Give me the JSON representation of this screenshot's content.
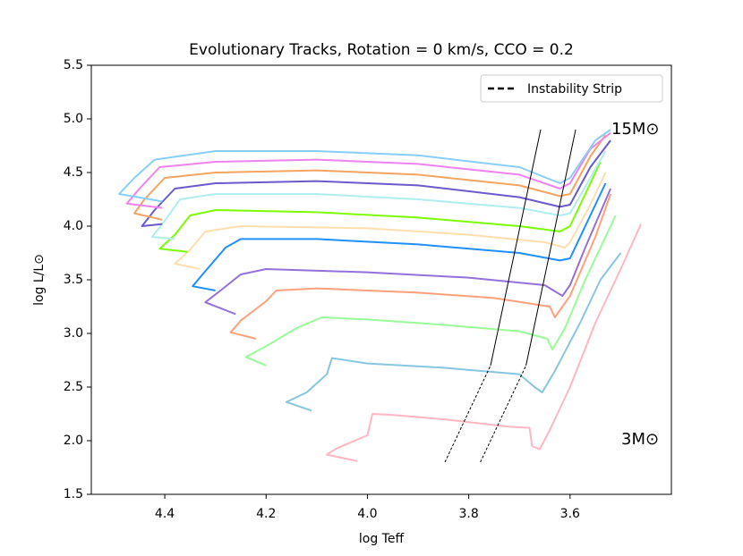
{
  "chart_data": {
    "type": "line",
    "title": "Evolutionary Tracks, Rotation = 0 km/s, CCO = 0.2",
    "x_label": "log Teff",
    "y_label": "log L/L⊙",
    "xlim": [
      4.545,
      3.4
    ],
    "ylim": [
      1.5,
      5.5
    ],
    "xticks": [
      4.4,
      4.2,
      {
        "value": 4,
        "label": "4.0"
      },
      3.8,
      3.6
    ],
    "yticks": [
      1.5,
      {
        "value": 2,
        "label": "2.0"
      },
      2.5,
      {
        "value": 3,
        "label": "3.0"
      },
      3.5,
      {
        "value": 4,
        "label": "4.0"
      },
      4.5,
      {
        "value": 5,
        "label": "5.0"
      },
      5.5
    ],
    "grid": false,
    "legend": "upper right",
    "annotations": [
      "15M⊙",
      "3M⊙"
    ],
    "instability_strip": {
      "name": "Instability Strip",
      "color": "#000000",
      "lines": [
        {
          "style": "dashed",
          "x": [
            3.847,
            3.757
          ],
          "values": [
            1.8,
            2.7
          ]
        },
        {
          "style": "solid",
          "x": [
            3.757,
            3.658
          ],
          "values": [
            2.7,
            4.9
          ]
        },
        {
          "style": "dashed",
          "x": [
            3.777,
            3.687
          ],
          "values": [
            1.8,
            2.7
          ]
        },
        {
          "style": "solid",
          "x": [
            3.687,
            3.589
          ],
          "values": [
            2.7,
            4.9
          ]
        }
      ]
    },
    "series": [
      {
        "color": "#ffb6c1",
        "x": [
          4.02,
          4.08,
          4.06,
          4.0,
          3.99,
          3.95,
          3.85,
          3.72,
          3.68,
          3.675,
          3.66,
          3.64,
          3.6,
          3.55,
          3.5,
          3.46
        ],
        "values": [
          1.81,
          1.87,
          1.93,
          2.05,
          2.25,
          2.24,
          2.2,
          2.13,
          2.12,
          1.95,
          1.92,
          2.1,
          2.5,
          3.1,
          3.6,
          4.02
        ]
      },
      {
        "color": "#87c6e0",
        "x": [
          4.11,
          4.16,
          4.12,
          4.08,
          4.07,
          4.0,
          3.85,
          3.7,
          3.67,
          3.655,
          3.63,
          3.58,
          3.54,
          3.5
        ],
        "values": [
          2.28,
          2.36,
          2.45,
          2.62,
          2.77,
          2.72,
          2.68,
          2.62,
          2.5,
          2.45,
          2.65,
          3.1,
          3.5,
          3.75
        ]
      },
      {
        "color": "#98fb98",
        "x": [
          4.2,
          4.24,
          4.2,
          4.14,
          4.09,
          4.0,
          3.85,
          3.7,
          3.645,
          3.635,
          3.61,
          3.57,
          3.51
        ],
        "values": [
          2.7,
          2.78,
          2.88,
          3.05,
          3.15,
          3.13,
          3.08,
          3.02,
          2.95,
          2.85,
          3.05,
          3.5,
          4.1
        ]
      },
      {
        "color": "#ffa07a",
        "x": [
          4.22,
          4.27,
          4.25,
          4.2,
          4.18,
          4.1,
          3.9,
          3.75,
          3.64,
          3.63,
          3.6,
          3.55,
          3.52
        ],
        "values": [
          2.95,
          3.01,
          3.12,
          3.3,
          3.4,
          3.42,
          3.38,
          3.33,
          3.25,
          3.15,
          3.35,
          3.9,
          4.3
        ]
      },
      {
        "color": "#9370db",
        "x": [
          4.26,
          4.32,
          4.29,
          4.25,
          4.2,
          4.0,
          3.8,
          3.65,
          3.615,
          3.6,
          3.57,
          3.52
        ],
        "values": [
          3.18,
          3.29,
          3.4,
          3.55,
          3.6,
          3.57,
          3.52,
          3.45,
          3.35,
          3.45,
          3.8,
          4.35
        ]
      },
      {
        "color": "#1e90ff",
        "x": [
          4.3,
          4.345,
          4.32,
          4.28,
          4.25,
          4.1,
          3.9,
          3.7,
          3.62,
          3.6,
          3.57,
          3.53
        ],
        "values": [
          3.4,
          3.44,
          3.58,
          3.8,
          3.88,
          3.88,
          3.83,
          3.75,
          3.68,
          3.7,
          4.0,
          4.4
        ]
      },
      {
        "color": "#ffdead",
        "x": [
          4.33,
          4.38,
          4.35,
          4.32,
          4.25,
          4.0,
          3.8,
          3.65,
          3.61,
          3.6,
          3.56,
          3.53
        ],
        "values": [
          3.6,
          3.65,
          3.78,
          3.95,
          4.0,
          3.98,
          3.92,
          3.85,
          3.8,
          3.85,
          4.2,
          4.5
        ]
      },
      {
        "color": "#7cfc00",
        "x": [
          4.355,
          4.41,
          4.38,
          4.35,
          4.3,
          4.1,
          3.9,
          3.7,
          3.62,
          3.6,
          3.57,
          3.54
        ],
        "values": [
          3.76,
          3.79,
          3.92,
          4.1,
          4.15,
          4.13,
          4.08,
          4.0,
          3.95,
          4.0,
          4.3,
          4.6
        ]
      },
      {
        "color": "#afeeee",
        "x": [
          4.38,
          4.425,
          4.4,
          4.37,
          4.3,
          4.1,
          3.9,
          3.7,
          3.62,
          3.6,
          3.56,
          3.53
        ],
        "values": [
          3.88,
          3.9,
          4.05,
          4.25,
          4.3,
          4.3,
          4.25,
          4.17,
          4.1,
          4.12,
          4.45,
          4.7
        ]
      },
      {
        "color": "#6a5acd",
        "x": [
          4.405,
          4.445,
          4.42,
          4.38,
          4.3,
          4.1,
          3.9,
          3.7,
          3.62,
          3.6,
          3.56,
          3.52
        ],
        "values": [
          4.02,
          4.0,
          4.15,
          4.35,
          4.4,
          4.42,
          4.38,
          4.27,
          4.18,
          4.2,
          4.55,
          4.8
        ]
      },
      {
        "color": "#f4a460",
        "x": [
          4.405,
          4.46,
          4.44,
          4.4,
          4.3,
          4.1,
          3.9,
          3.7,
          3.62,
          3.6,
          3.56,
          3.53
        ],
        "values": [
          4.06,
          4.12,
          4.25,
          4.45,
          4.5,
          4.52,
          4.48,
          4.38,
          4.28,
          4.3,
          4.65,
          4.85
        ]
      },
      {
        "color": "#ee82ee",
        "x": [
          4.405,
          4.475,
          4.45,
          4.41,
          4.3,
          4.1,
          3.9,
          3.7,
          3.62,
          3.6,
          3.56,
          3.52
        ],
        "values": [
          4.17,
          4.21,
          4.35,
          4.55,
          4.6,
          4.62,
          4.58,
          4.48,
          4.35,
          4.4,
          4.72,
          4.87
        ]
      },
      {
        "color": "#87cefa",
        "x": [
          4.405,
          4.49,
          4.46,
          4.42,
          4.3,
          4.1,
          3.9,
          3.7,
          3.62,
          3.6,
          3.55,
          3.52
        ],
        "values": [
          4.23,
          4.3,
          4.45,
          4.62,
          4.7,
          4.7,
          4.66,
          4.55,
          4.4,
          4.45,
          4.8,
          4.9
        ]
      }
    ]
  }
}
